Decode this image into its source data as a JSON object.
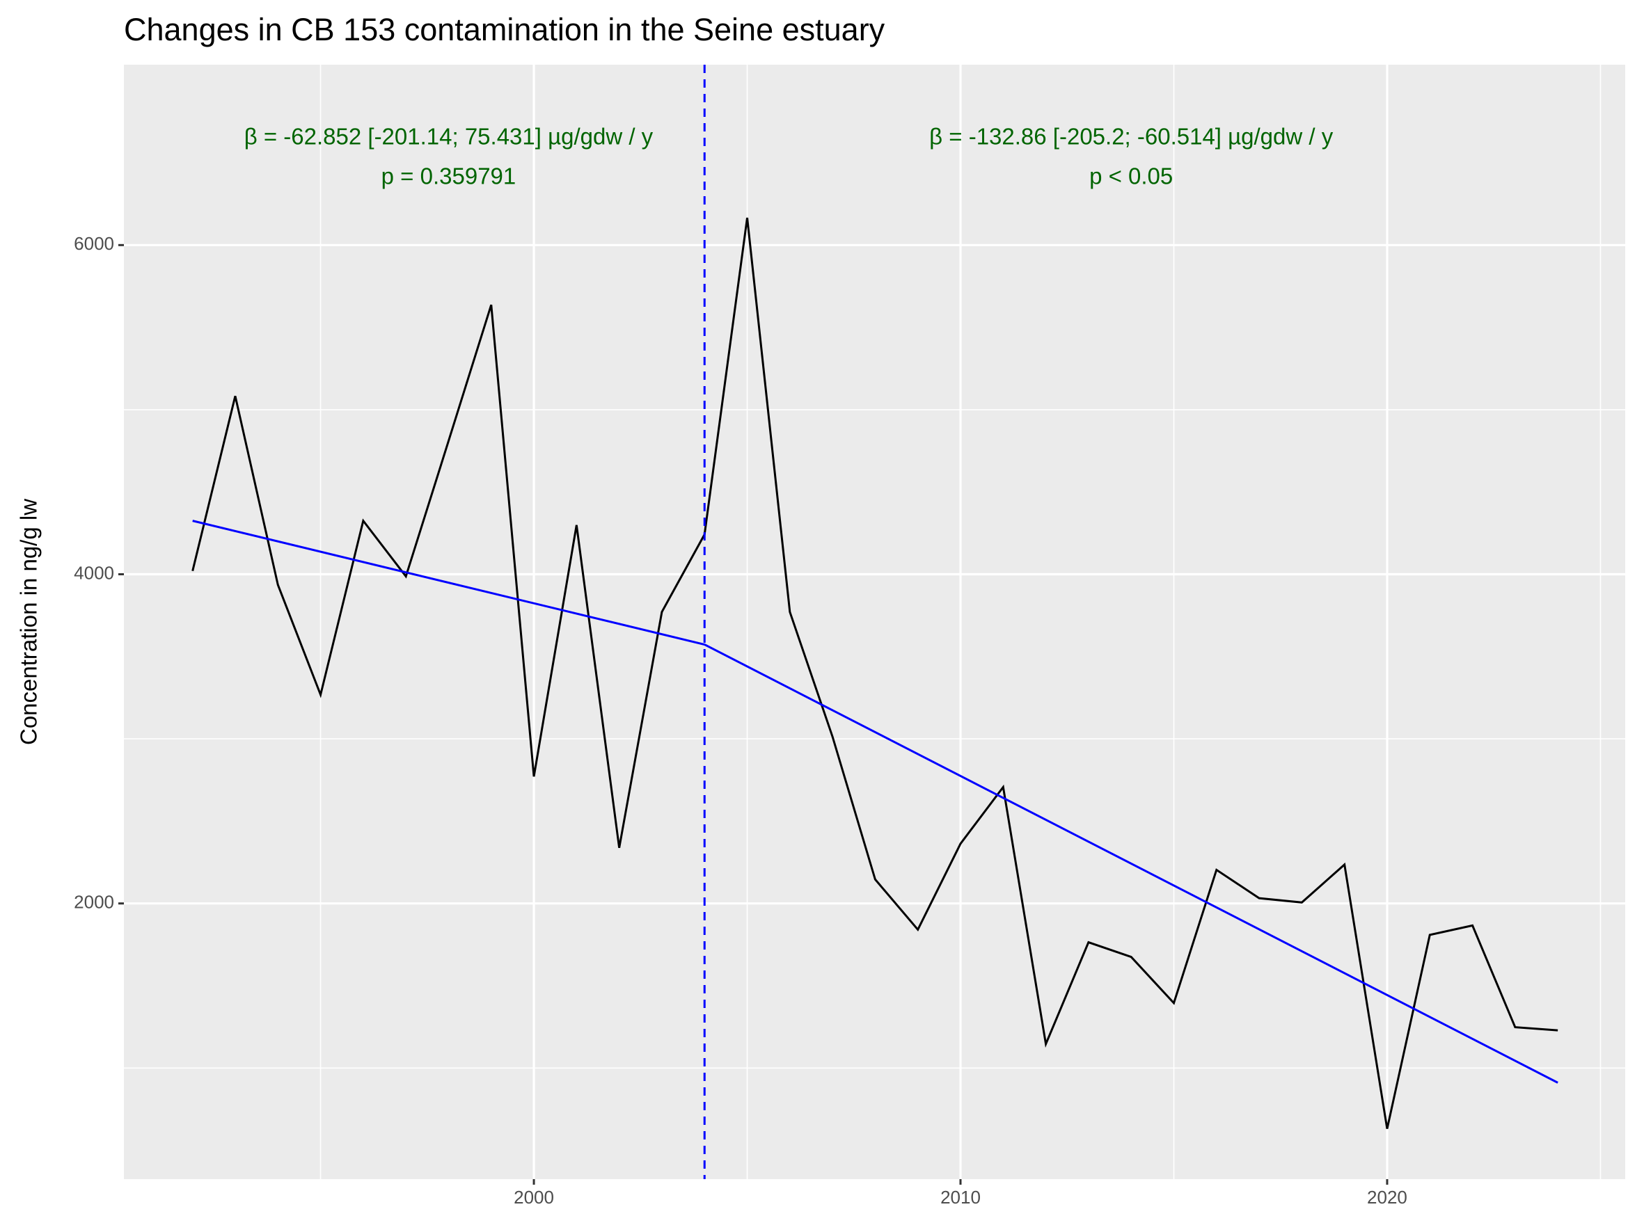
{
  "chart_data": {
    "type": "line",
    "title": "Changes in CB 153 contamination in the Seine estuary",
    "y_label": "Concentration in ng/g lw",
    "x": [
      1992,
      1993,
      1994,
      1995,
      1996,
      1997,
      1998,
      1999,
      2000,
      2001,
      2002,
      2003,
      2004,
      2005,
      2006,
      2007,
      2008,
      2009,
      2010,
      2011,
      2012,
      2013,
      2014,
      2015,
      2016,
      2017,
      2018,
      2019,
      2020,
      2021,
      2022,
      2023,
      2024
    ],
    "series": [
      {
        "color": "#000000",
        "values": [
          4020,
          5083,
          3936,
          3268,
          4325,
          3987,
          4810,
          5637,
          2771,
          4299,
          2338,
          3771,
          4242,
          6166,
          3771,
          3013,
          2146,
          1841,
          2363,
          2707,
          1146,
          1764,
          1675,
          1395,
          2204,
          2032,
          2006,
          2236,
          631,
          1809,
          1866,
          1248,
          1229
        ]
      }
    ],
    "trend": {
      "color": "#0000ff",
      "x": [
        1992,
        2004,
        2024
      ],
      "values": [
        4325,
        3573,
        911
      ]
    },
    "breakpoint": 2004,
    "breakpoint_color": "#0000ff",
    "annotations": [
      {
        "x": 1998,
        "color": "#006400",
        "lines": [
          "β = -62.852 [-201.14; 75.431] µg/gdw / y",
          "p = 0.359791"
        ]
      },
      {
        "x": 2014,
        "color": "#006400",
        "lines": [
          "β = -132.86 [-205.2; -60.514] µg/gdw / y",
          "p < 0.05"
        ]
      }
    ],
    "xlim": [
      1990.39,
      2025.58
    ],
    "ylim": [
      325,
      7096
    ],
    "xticks": [
      2000,
      2010,
      2020
    ],
    "yticks": [
      2000,
      4000,
      6000
    ],
    "x_minor_ticks": [
      1995,
      2005,
      2015,
      2025
    ],
    "y_minor_ticks": [
      1000,
      3000,
      5000
    ],
    "grid": true
  }
}
